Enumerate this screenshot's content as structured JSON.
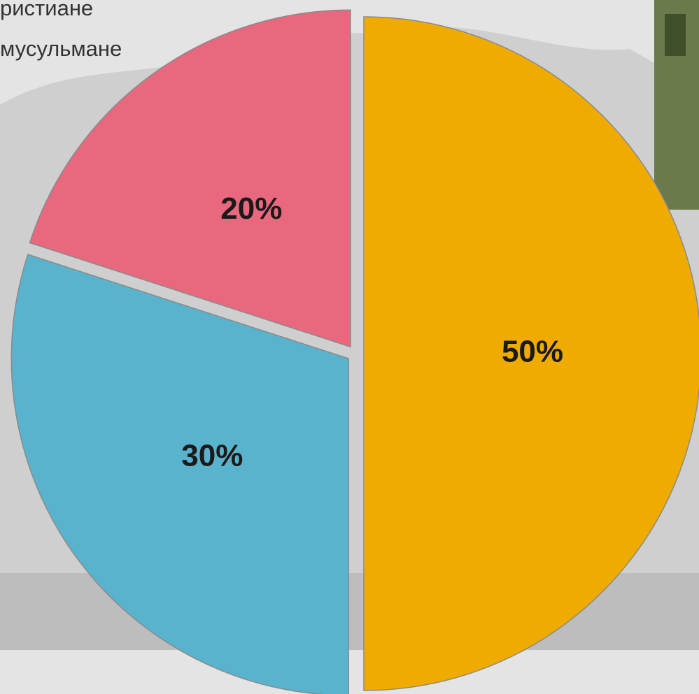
{
  "chart_data": {
    "type": "pie",
    "categories": [
      "ристиане",
      "мусульмане",
      null
    ],
    "values": [
      50,
      30,
      20
    ],
    "value_labels": [
      "50%",
      "30%",
      "20%"
    ],
    "colors": [
      "#f0ab00",
      "#5ab3cd",
      "#e8687e"
    ]
  }
}
